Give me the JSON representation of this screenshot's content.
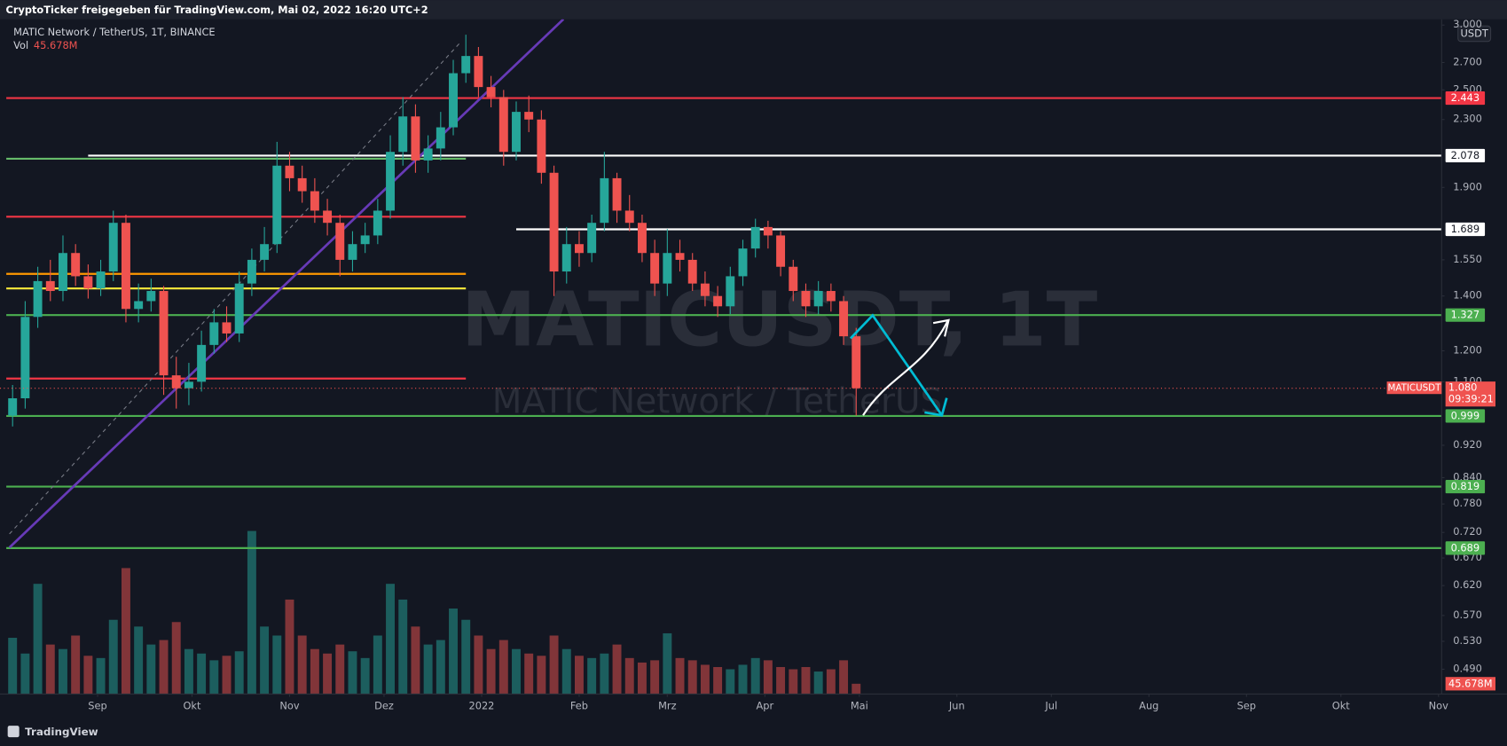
{
  "header": {
    "shared_by": "CryptoTicker freigegeben für TradingView.com, Mai 02, 2022 16:20 UTC+2",
    "symbol": "MATIC Network / TetherUS, 1T, BINANCE",
    "volume_label": "Vol"
  },
  "watermark": {
    "ticker": "MATICUSDT, 1T",
    "name": "MATIC Network / TetherUS"
  },
  "currency_button": "USDT",
  "footer": "TradingView",
  "chart_data": {
    "type": "candlestick",
    "log_scale": true,
    "up_color": "#26a69a",
    "down_color": "#ef5350",
    "x": [
      4,
      8,
      12,
      16,
      20,
      24,
      28,
      32,
      36,
      40,
      44,
      48,
      52,
      56,
      60,
      64,
      68,
      72,
      76,
      80,
      84,
      88,
      92,
      96,
      100,
      104,
      108,
      112,
      116,
      120,
      124,
      128,
      132,
      136,
      140,
      144,
      148,
      152,
      156,
      160,
      164,
      168,
      172,
      176,
      180,
      184,
      188,
      192,
      196,
      200,
      204,
      208,
      212,
      216,
      220,
      224,
      228,
      232,
      236,
      240,
      244,
      248,
      252,
      256,
      260,
      264,
      268,
      272
    ],
    "open": [
      1.0,
      1.05,
      1.32,
      1.46,
      1.42,
      1.58,
      1.48,
      1.43,
      1.5,
      1.72,
      1.35,
      1.38,
      1.42,
      1.12,
      1.08,
      1.1,
      1.22,
      1.3,
      1.26,
      1.45,
      1.55,
      1.62,
      2.02,
      1.95,
      1.88,
      1.78,
      1.72,
      1.55,
      1.62,
      1.66,
      1.78,
      2.1,
      2.32,
      2.05,
      2.12,
      2.25,
      2.62,
      2.75,
      2.52,
      2.45,
      2.1,
      2.35,
      2.3,
      1.98,
      1.5,
      1.62,
      1.58,
      1.72,
      1.95,
      1.78,
      1.72,
      1.58,
      1.45,
      1.58,
      1.55,
      1.45,
      1.4,
      1.36,
      1.48,
      1.6,
      1.7,
      1.66,
      1.52,
      1.42,
      1.36,
      1.42,
      1.38,
      1.25
    ],
    "high": [
      1.09,
      1.38,
      1.52,
      1.55,
      1.66,
      1.62,
      1.53,
      1.55,
      1.78,
      1.76,
      1.45,
      1.47,
      1.44,
      1.18,
      1.16,
      1.27,
      1.35,
      1.36,
      1.5,
      1.6,
      1.7,
      2.16,
      2.1,
      2.02,
      1.95,
      1.84,
      1.76,
      1.68,
      1.72,
      1.84,
      2.2,
      2.45,
      2.4,
      2.2,
      2.35,
      2.72,
      2.92,
      2.82,
      2.6,
      2.5,
      2.42,
      2.46,
      2.36,
      2.02,
      1.7,
      1.68,
      1.76,
      2.1,
      1.98,
      1.86,
      1.76,
      1.64,
      1.69,
      1.64,
      1.58,
      1.5,
      1.44,
      1.52,
      1.64,
      1.74,
      1.73,
      1.68,
      1.55,
      1.45,
      1.46,
      1.45,
      1.4,
      1.28
    ],
    "low": [
      0.97,
      1.02,
      1.28,
      1.38,
      1.38,
      1.44,
      1.39,
      1.4,
      1.46,
      1.3,
      1.3,
      1.34,
      1.06,
      1.02,
      1.03,
      1.07,
      1.19,
      1.23,
      1.23,
      1.4,
      1.5,
      1.58,
      1.88,
      1.82,
      1.72,
      1.66,
      1.48,
      1.5,
      1.58,
      1.62,
      1.74,
      2.02,
      1.98,
      1.98,
      2.05,
      2.2,
      2.55,
      2.45,
      2.38,
      2.02,
      2.05,
      2.22,
      1.92,
      1.4,
      1.45,
      1.52,
      1.54,
      1.68,
      1.72,
      1.68,
      1.54,
      1.4,
      1.4,
      1.5,
      1.42,
      1.36,
      1.32,
      1.33,
      1.44,
      1.56,
      1.6,
      1.48,
      1.38,
      1.32,
      1.33,
      1.34,
      1.22,
      1.0
    ],
    "close": [
      1.05,
      1.32,
      1.46,
      1.42,
      1.58,
      1.48,
      1.43,
      1.5,
      1.72,
      1.35,
      1.38,
      1.42,
      1.12,
      1.08,
      1.1,
      1.22,
      1.3,
      1.26,
      1.45,
      1.55,
      1.62,
      2.02,
      1.95,
      1.88,
      1.78,
      1.72,
      1.55,
      1.62,
      1.66,
      1.78,
      2.1,
      2.32,
      2.05,
      2.12,
      2.25,
      2.62,
      2.75,
      2.52,
      2.45,
      2.1,
      2.35,
      2.3,
      1.98,
      1.5,
      1.62,
      1.58,
      1.72,
      1.95,
      1.78,
      1.72,
      1.58,
      1.45,
      1.58,
      1.55,
      1.45,
      1.4,
      1.36,
      1.48,
      1.6,
      1.7,
      1.66,
      1.52,
      1.42,
      1.36,
      1.42,
      1.38,
      1.25,
      1.08
    ],
    "ylim": [
      0.457,
      3.049
    ],
    "yticks": [
      {
        "value": 3,
        "label": "3.000"
      },
      {
        "value": 2.7,
        "label": "2.700"
      },
      {
        "value": 2.5,
        "label": "2.500"
      },
      {
        "value": 2.3,
        "label": "2.300"
      },
      {
        "value": 1.9,
        "label": "1.900"
      },
      {
        "value": 1.55,
        "label": "1.550"
      },
      {
        "value": 1.4,
        "label": "1.400"
      },
      {
        "value": 1.2,
        "label": "1.200"
      },
      {
        "value": 1.1,
        "label": "1.100"
      },
      {
        "value": 0.92,
        "label": "0.920"
      },
      {
        "value": 0.84,
        "label": "0.840"
      },
      {
        "value": 0.78,
        "label": "0.780"
      },
      {
        "value": 0.72,
        "label": "0.720"
      },
      {
        "value": 0.67,
        "label": "0.670"
      },
      {
        "value": 0.62,
        "label": "0.620"
      },
      {
        "value": 0.57,
        "label": "0.570"
      },
      {
        "value": 0.53,
        "label": "0.530"
      },
      {
        "value": 0.49,
        "label": "0.490"
      }
    ],
    "xlim": [
      0,
      458
    ],
    "xticks": [
      {
        "value": 31,
        "label": "Sep"
      },
      {
        "value": 61,
        "label": "Okt"
      },
      {
        "value": 92,
        "label": "Nov"
      },
      {
        "value": 122,
        "label": "Dez"
      },
      {
        "value": 153,
        "label": "2022"
      },
      {
        "value": 184,
        "label": "Feb"
      },
      {
        "value": 212,
        "label": "Mrz"
      },
      {
        "value": 243,
        "label": "Apr"
      },
      {
        "value": 273,
        "label": "Mai"
      },
      {
        "value": 304,
        "label": "Jun"
      },
      {
        "value": 334,
        "label": "Jul"
      },
      {
        "value": 365,
        "label": "Aug"
      },
      {
        "value": 396,
        "label": "Sep"
      },
      {
        "value": 426,
        "label": "Okt"
      },
      {
        "value": 457,
        "label": "Nov"
      }
    ],
    "volume": {
      "ylim": [
        0,
        3000
      ],
      "values": [
        250,
        180,
        490,
        220,
        200,
        260,
        170,
        160,
        330,
        560,
        300,
        220,
        240,
        320,
        200,
        180,
        150,
        170,
        190,
        725,
        300,
        260,
        420,
        260,
        200,
        180,
        220,
        190,
        160,
        260,
        490,
        420,
        300,
        220,
        240,
        380,
        330,
        260,
        200,
        240,
        200,
        180,
        170,
        260,
        200,
        170,
        160,
        180,
        220,
        160,
        140,
        150,
        270,
        160,
        150,
        130,
        120,
        110,
        130,
        160,
        150,
        120,
        110,
        120,
        100,
        110,
        150,
        45.678
      ],
      "value_labels": [
        null,
        null,
        null,
        null,
        null,
        null,
        null,
        null,
        null,
        null,
        null,
        null,
        null,
        null,
        null,
        null,
        null,
        null,
        null,
        null,
        null,
        null,
        null,
        null,
        null,
        null,
        null,
        null,
        null,
        null,
        null,
        null,
        null,
        null,
        null,
        null,
        null,
        null,
        null,
        null,
        null,
        null,
        null,
        null,
        null,
        null,
        null,
        null,
        null,
        null,
        null,
        null,
        null,
        null,
        null,
        null,
        null,
        null,
        null,
        null,
        null,
        null,
        null,
        null,
        null,
        null,
        null,
        "45.678M"
      ]
    },
    "levels": [
      {
        "value": 2.443,
        "color": "#f23645",
        "from": 2,
        "labeled": true
      },
      {
        "value": 2.078,
        "color": "#ffffff",
        "from": 28,
        "labeled": true
      },
      {
        "value": 1.689,
        "color": "#ffffff",
        "from": 164,
        "labeled": true
      },
      {
        "value": 1.327,
        "color": "#4caf50",
        "from": 2,
        "labeled": true
      },
      {
        "value": 0.999,
        "color": "#4caf50",
        "from": 2,
        "labeled": true
      },
      {
        "value": 0.819,
        "color": "#4caf50",
        "from": 2,
        "labeled": true
      },
      {
        "value": 0.689,
        "color": "#4caf50",
        "from": 2,
        "labeled": true
      },
      {
        "value": 2.06,
        "color": "#66bb6a",
        "from": 2,
        "to": 148,
        "labeled": false
      },
      {
        "value": 1.75,
        "color": "#f23645",
        "from": 2,
        "to": 148,
        "labeled": false
      },
      {
        "value": 1.49,
        "color": "#ff9800",
        "from": 2,
        "to": 148,
        "labeled": false
      },
      {
        "value": 1.43,
        "color": "#ffeb3b",
        "from": 2,
        "to": 148,
        "labeled": false
      },
      {
        "value": 1.11,
        "color": "#f23645",
        "from": 2,
        "to": 148,
        "labeled": false
      }
    ],
    "trendlines": [
      {
        "color": "#673ab7",
        "dashed": false,
        "x": [
          3,
          179
        ],
        "y": [
          0.69,
          3.05
        ]
      },
      {
        "color": "#787b86",
        "dashed": true,
        "x": [
          3,
          146
        ],
        "y": [
          0.717,
          2.85
        ]
      }
    ],
    "last_price": {
      "value": 1.08,
      "label": "1.080",
      "name": "MATICUSDT",
      "countdown": "09:39:21",
      "color": "#ef5350"
    }
  }
}
